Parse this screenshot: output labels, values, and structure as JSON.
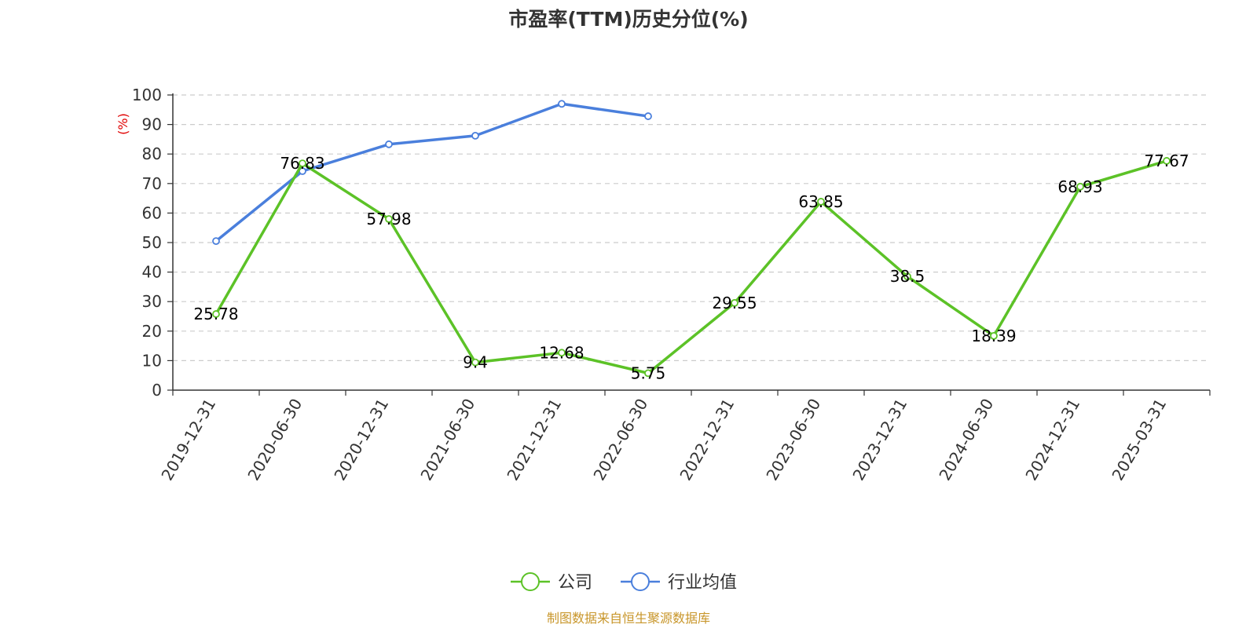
{
  "chart_data": {
    "type": "line",
    "title": "市盈率(TTM)历史分位(%)",
    "ylabel": "(%)",
    "xlabel": "",
    "categories": [
      "2019-12-31",
      "2020-06-30",
      "2020-12-31",
      "2021-06-30",
      "2021-12-31",
      "2022-06-30",
      "2022-12-31",
      "2023-06-30",
      "2023-12-31",
      "2024-06-30",
      "2024-12-31",
      "2025-03-31"
    ],
    "ylim": [
      0,
      100
    ],
    "yticks": [
      "0",
      "10",
      "20",
      "30",
      "40",
      "50",
      "60",
      "70",
      "80",
      "90",
      "100"
    ],
    "grid": true,
    "legend_position": "bottom",
    "series": [
      {
        "name": "公司",
        "color": "#5cc227",
        "values": [
          25.78,
          76.83,
          57.98,
          9.4,
          12.68,
          5.75,
          29.55,
          63.85,
          38.5,
          18.39,
          68.93,
          77.67
        ],
        "labels": [
          "25.78",
          "76.83",
          "57.98",
          "9.4",
          "12.68",
          "5.75",
          "29.55",
          "63.85",
          "38.5",
          "18.39",
          "68.93",
          "77.67"
        ],
        "show_labels": true
      },
      {
        "name": "行业均值",
        "color": "#4a7fdc",
        "values": [
          50.5,
          74.2,
          83.3,
          86.2,
          97.0,
          92.8,
          null,
          null,
          null,
          null,
          null,
          null
        ],
        "show_labels": false
      }
    ]
  },
  "footer": {
    "source": "制图数据来自恒生聚源数据库"
  }
}
